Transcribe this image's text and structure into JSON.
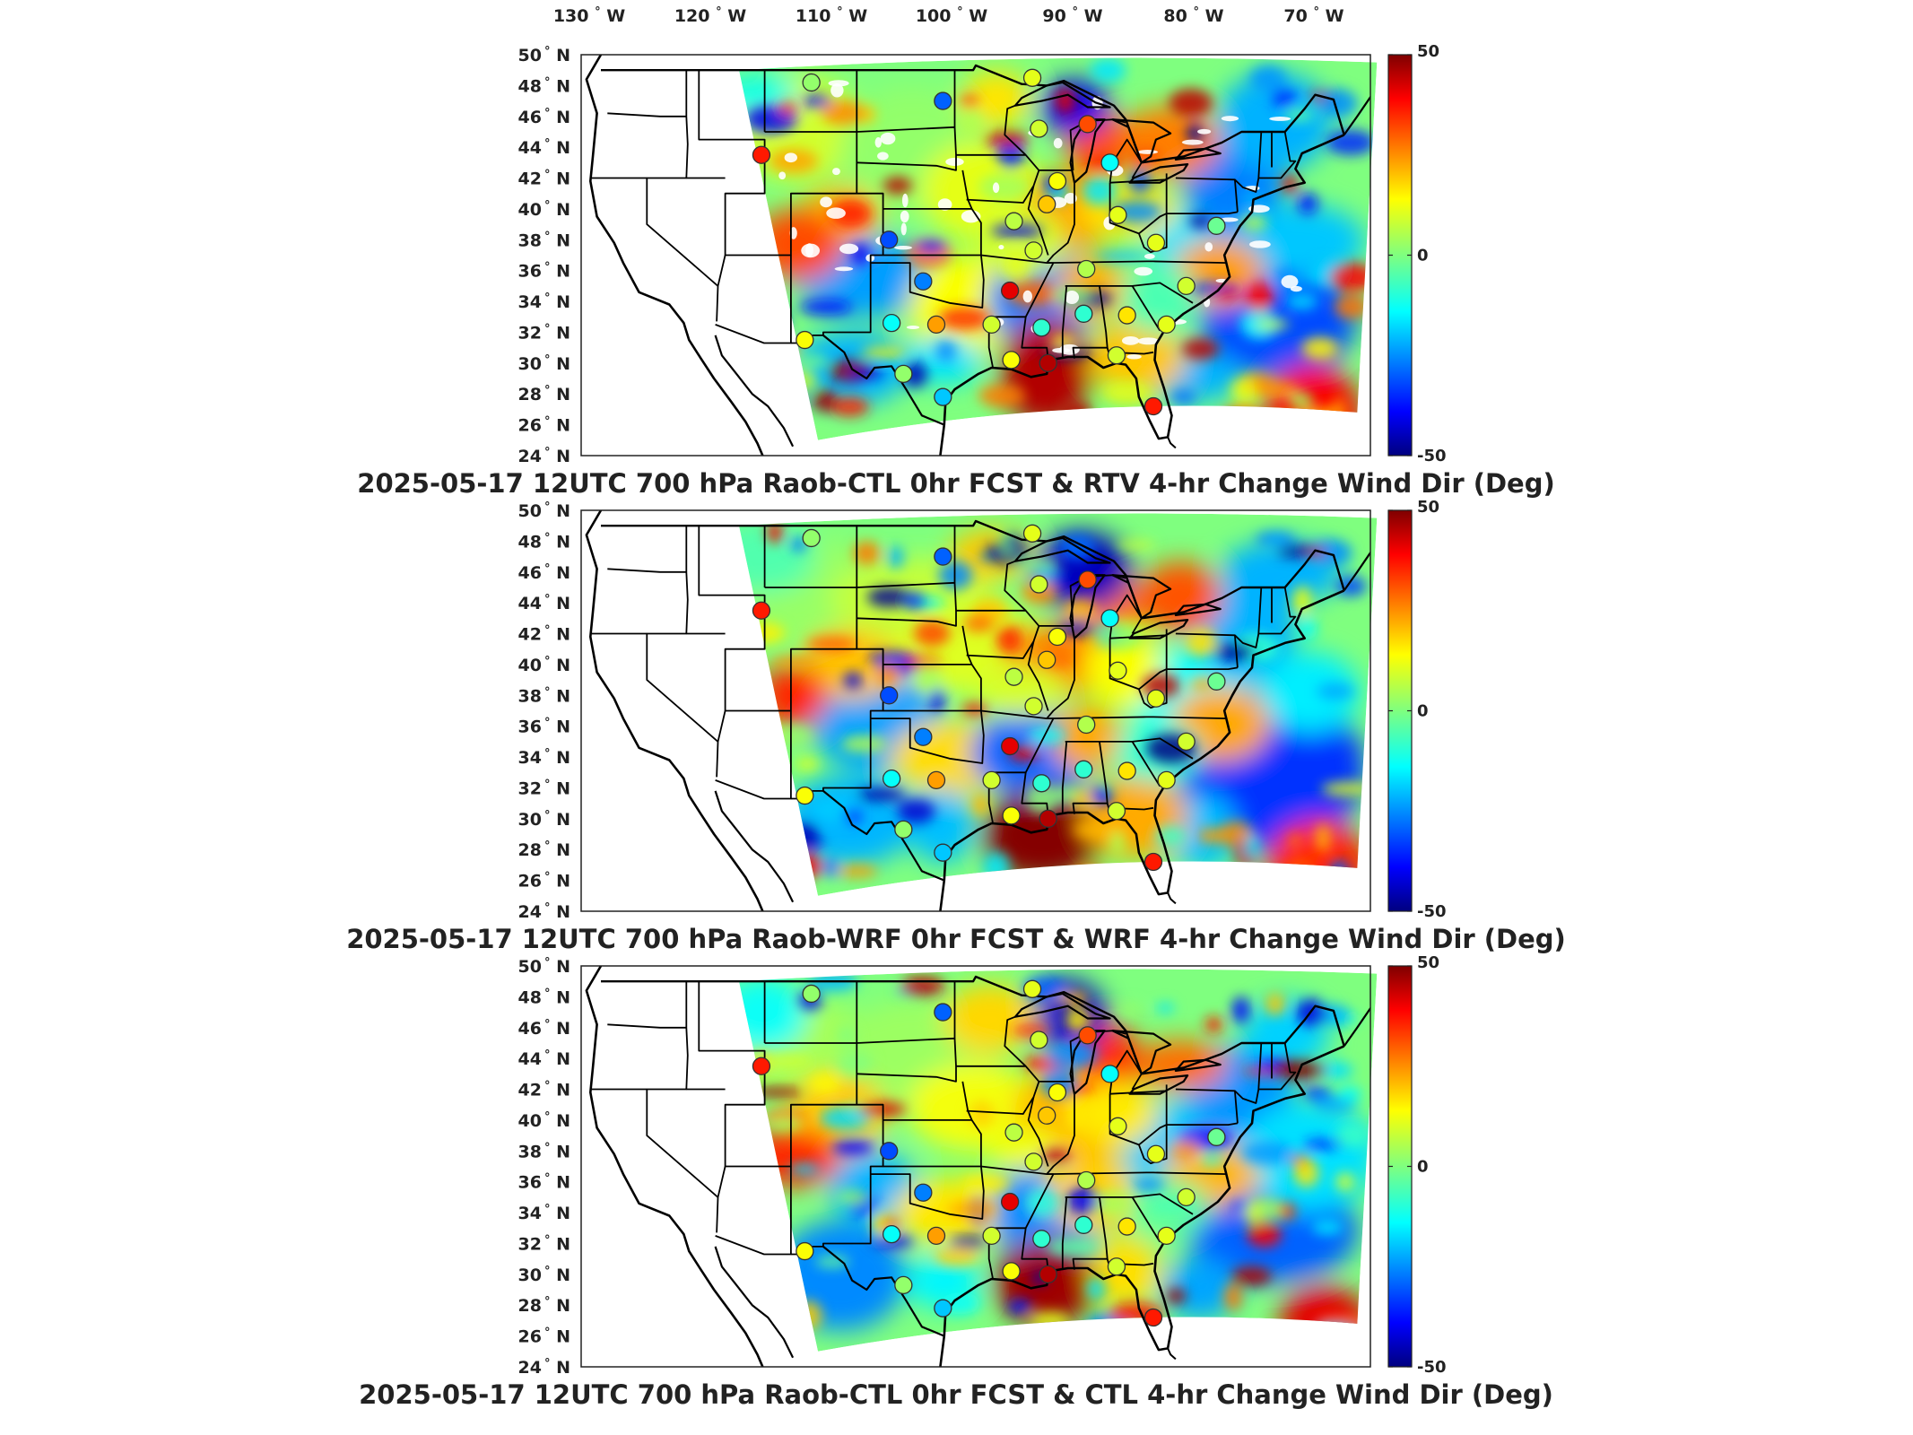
{
  "chart_data": {
    "type": "heatmap",
    "lon_ticks": [
      "130",
      "120",
      "110",
      "100",
      "90",
      "80",
      "70"
    ],
    "lon_suffix": "W",
    "lat_ticks": [
      "50",
      "48",
      "46",
      "44",
      "42",
      "40",
      "38",
      "36",
      "34",
      "32",
      "30",
      "28",
      "26",
      "24"
    ],
    "lat_suffix": "N",
    "degree_symbol": "°",
    "colorbar": {
      "min": -50,
      "max": 50,
      "tick_labels": [
        "50",
        "0",
        "-50"
      ]
    },
    "colorscale": [
      "#00007f",
      "#0000ff",
      "#007fff",
      "#00ffff",
      "#7fff7f",
      "#ffff00",
      "#ff7f00",
      "#ff0000",
      "#7f0000"
    ],
    "panels": [
      {
        "title": "2025-05-17 12UTC 700 hPa Raob-CTL 0hr FCST & RTV 4-hr Change Wind Dir (Deg)"
      },
      {
        "title": "2025-05-17 12UTC 700 hPa Raob-WRF 0hr FCST & WRF 4-hr Change Wind Dir (Deg)"
      },
      {
        "title": "2025-05-17 12UTC 700 hPa Raob-CTL 0hr FCST & CTL 4-hr Change Wind Dir (Deg)"
      }
    ],
    "stations": [
      {
        "lon": -107.5,
        "lat": 48.2,
        "v": 2
      },
      {
        "lon": -97.5,
        "lat": 47.0,
        "v": -28
      },
      {
        "lon": -90.7,
        "lat": 48.5,
        "v": 10
      },
      {
        "lon": -111.3,
        "lat": 43.5,
        "v": 35
      },
      {
        "lon": -90.2,
        "lat": 45.2,
        "v": 8
      },
      {
        "lon": -86.5,
        "lat": 45.5,
        "v": 30
      },
      {
        "lon": -84.8,
        "lat": 43.0,
        "v": -12
      },
      {
        "lon": -88.8,
        "lat": 41.8,
        "v": 12
      },
      {
        "lon": -89.6,
        "lat": 40.3,
        "v": 18
      },
      {
        "lon": -92.1,
        "lat": 39.2,
        "v": 6
      },
      {
        "lon": -84.2,
        "lat": 39.6,
        "v": 10
      },
      {
        "lon": -101.6,
        "lat": 38.0,
        "v": -30
      },
      {
        "lon": -90.6,
        "lat": 37.3,
        "v": 8
      },
      {
        "lon": -81.3,
        "lat": 37.8,
        "v": 10
      },
      {
        "lon": -76.7,
        "lat": 38.9,
        "v": -2
      },
      {
        "lon": -99.0,
        "lat": 35.3,
        "v": -25
      },
      {
        "lon": -92.4,
        "lat": 34.7,
        "v": 40
      },
      {
        "lon": -86.6,
        "lat": 36.1,
        "v": 5
      },
      {
        "lon": -79.0,
        "lat": 35.0,
        "v": 8
      },
      {
        "lon": -101.4,
        "lat": 32.6,
        "v": -12
      },
      {
        "lon": -98.0,
        "lat": 32.5,
        "v": 22
      },
      {
        "lon": -93.8,
        "lat": 32.5,
        "v": 8
      },
      {
        "lon": -90.0,
        "lat": 32.3,
        "v": -8
      },
      {
        "lon": -86.8,
        "lat": 33.2,
        "v": -8
      },
      {
        "lon": -83.5,
        "lat": 33.1,
        "v": 15
      },
      {
        "lon": -80.5,
        "lat": 32.5,
        "v": 10
      },
      {
        "lon": -108.0,
        "lat": 31.5,
        "v": 12
      },
      {
        "lon": -100.5,
        "lat": 29.3,
        "v": 2
      },
      {
        "lon": -97.5,
        "lat": 27.8,
        "v": -18
      },
      {
        "lon": -92.3,
        "lat": 30.2,
        "v": 12
      },
      {
        "lon": -89.5,
        "lat": 30.0,
        "v": 45
      },
      {
        "lon": -84.3,
        "lat": 30.5,
        "v": 8
      },
      {
        "lon": -81.5,
        "lat": 27.2,
        "v": 35
      }
    ]
  }
}
